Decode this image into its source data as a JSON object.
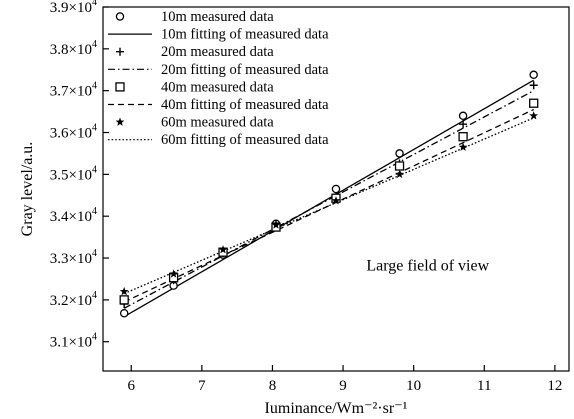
{
  "chart_data": {
    "type": "line",
    "title": "",
    "xlabel": "Iuminance/Wm⁻²·sr⁻¹",
    "ylabel": "Gray level/a.u.",
    "xlim": [
      5.6,
      12.2
    ],
    "ylim": [
      30300,
      39000
    ],
    "x_ticks": [
      6,
      7,
      8,
      9,
      10,
      11,
      12
    ],
    "y_ticks": [
      {
        "value": 31000,
        "mantissa": "3.1",
        "exp": "4"
      },
      {
        "value": 32000,
        "mantissa": "3.2",
        "exp": "4"
      },
      {
        "value": 33000,
        "mantissa": "3.3",
        "exp": "4"
      },
      {
        "value": 34000,
        "mantissa": "3.4",
        "exp": "4"
      },
      {
        "value": 35000,
        "mantissa": "3.5",
        "exp": "4"
      },
      {
        "value": 36000,
        "mantissa": "3.6",
        "exp": "4"
      },
      {
        "value": 37000,
        "mantissa": "3.7",
        "exp": "4"
      },
      {
        "value": 38000,
        "mantissa": "3.8",
        "exp": "4"
      },
      {
        "value": 39000,
        "mantissa": "3.9",
        "exp": "4"
      }
    ],
    "tick_multiplier": "×10",
    "x": [
      5.9,
      6.6,
      7.3,
      8.05,
      8.9,
      9.8,
      10.7,
      11.7
    ],
    "grid": false,
    "legend_position": "top-left",
    "series": [
      {
        "name": "10m measured data",
        "marker": "circle",
        "values": [
          31680,
          32340,
          33080,
          33820,
          34650,
          35500,
          36400,
          37380
        ]
      },
      {
        "name": "10m fitting of measured data",
        "line": "solid",
        "fit": [
          [
            5.9,
            31600
          ],
          [
            11.7,
            37250
          ]
        ]
      },
      {
        "name": "20m measured data",
        "marker": "plus",
        "values": [
          31900,
          32470,
          33120,
          33800,
          34480,
          35260,
          36200,
          37130
        ]
      },
      {
        "name": "20m fitting of measured data",
        "line": "dashdot",
        "fit": [
          [
            5.9,
            31800
          ],
          [
            11.7,
            37000
          ]
        ]
      },
      {
        "name": "40m measured data",
        "marker": "square",
        "values": [
          32000,
          32530,
          33140,
          33740,
          34430,
          35200,
          35900,
          36700
        ]
      },
      {
        "name": "40m fitting of measured data",
        "line": "dashed",
        "fit": [
          [
            5.9,
            31950
          ],
          [
            11.7,
            36550
          ]
        ]
      },
      {
        "name": "60m measured data",
        "marker": "star",
        "values": [
          32200,
          32620,
          33200,
          33790,
          34370,
          35000,
          35650,
          36400
        ]
      },
      {
        "name": "60m fitting of measured data",
        "line": "dotted",
        "fit": [
          [
            5.9,
            32150
          ],
          [
            11.7,
            36350
          ]
        ]
      }
    ],
    "annotations": [
      {
        "text": "Large field of view",
        "at": [
          10.2,
          32700
        ]
      }
    ]
  }
}
